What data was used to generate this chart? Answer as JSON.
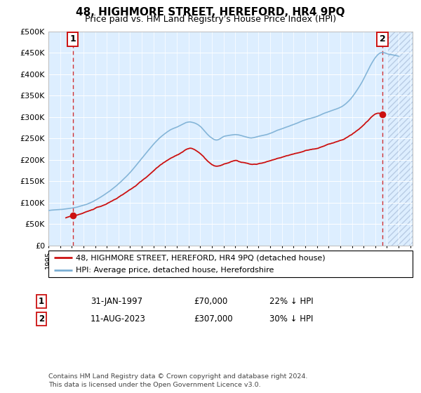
{
  "title": "48, HIGHMORE STREET, HEREFORD, HR4 9PQ",
  "subtitle": "Price paid vs. HM Land Registry's House Price Index (HPI)",
  "ylim": [
    0,
    500000
  ],
  "yticks": [
    0,
    50000,
    100000,
    150000,
    200000,
    250000,
    300000,
    350000,
    400000,
    450000,
    500000
  ],
  "ytick_labels": [
    "£0",
    "£50K",
    "£100K",
    "£150K",
    "£200K",
    "£250K",
    "£300K",
    "£350K",
    "£400K",
    "£450K",
    "£500K"
  ],
  "xlim_start": 1995.0,
  "xlim_end": 2026.2,
  "hpi_color": "#7bafd4",
  "price_color": "#cc1111",
  "bg_color": "#ddeeff",
  "grid_color": "#ffffff",
  "sale1_date": 1997.08,
  "sale1_price": 70000,
  "sale2_date": 2023.62,
  "sale2_price": 307000,
  "future_start": 2024.1,
  "legend_label1": "48, HIGHMORE STREET, HEREFORD, HR4 9PQ (detached house)",
  "legend_label2": "HPI: Average price, detached house, Herefordshire",
  "table1": [
    "1",
    "31-JAN-1997",
    "£70,000",
    "22% ↓ HPI"
  ],
  "table2": [
    "2",
    "11-AUG-2023",
    "£307,000",
    "30% ↓ HPI"
  ],
  "footnote": "Contains HM Land Registry data © Crown copyright and database right 2024.\nThis data is licensed under the Open Government Licence v3.0.",
  "title_fontsize": 11,
  "subtitle_fontsize": 9
}
